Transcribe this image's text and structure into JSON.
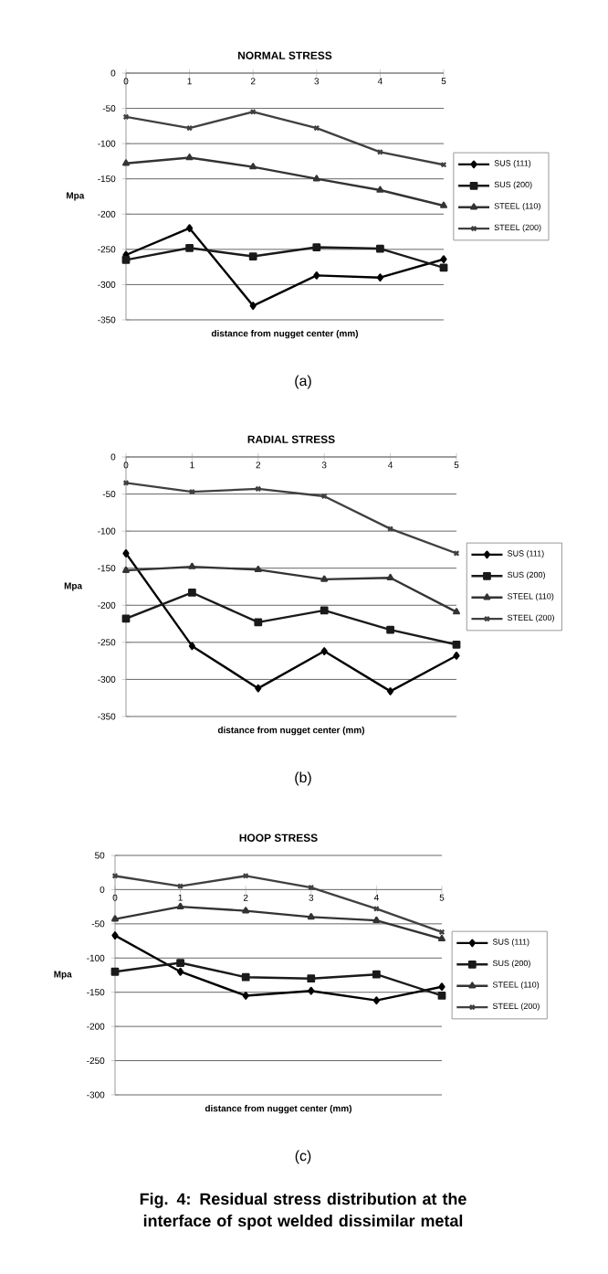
{
  "chart_data": [
    {
      "type": "line",
      "title": "NORMAL STRESS",
      "xlabel": "distance from nugget center (mm)",
      "ylabel": "Mpa",
      "x": [
        0,
        1,
        2,
        3,
        4,
        5
      ],
      "xlim": [
        0,
        5
      ],
      "xticks": [
        0,
        1,
        2,
        3,
        4,
        5
      ],
      "ylim": [
        -350,
        0
      ],
      "yticks": [
        -350,
        -300,
        -250,
        -200,
        -150,
        -100,
        -50,
        0
      ],
      "grid": "y",
      "legend": "right",
      "series": [
        {
          "name": "SUS (111)",
          "color": "#000000",
          "marker": "diamond",
          "values": [
            -258,
            -220,
            -330,
            -287,
            -290,
            -264
          ]
        },
        {
          "name": "SUS (200)",
          "color": "#1a1a1a",
          "marker": "square",
          "values": [
            -265,
            -248,
            -260,
            -247,
            -249,
            -276
          ]
        },
        {
          "name": "STEEL (110)",
          "color": "#333333",
          "marker": "triangle",
          "values": [
            -128,
            -120,
            -133,
            -150,
            -166,
            -188
          ]
        },
        {
          "name": "STEEL (200)",
          "color": "#404040",
          "marker": "cross",
          "values": [
            -62,
            -78,
            -55,
            -78,
            -112,
            -130
          ]
        }
      ],
      "annotations": [
        "(a)"
      ]
    },
    {
      "type": "line",
      "title": "RADIAL STRESS",
      "xlabel": "distance from nugget center (mm)",
      "ylabel": "Mpa",
      "x": [
        0,
        1,
        2,
        3,
        4,
        5
      ],
      "xlim": [
        0,
        5
      ],
      "xticks": [
        0,
        1,
        2,
        3,
        4,
        5
      ],
      "ylim": [
        -350,
        0
      ],
      "yticks": [
        -350,
        -300,
        -250,
        -200,
        -150,
        -100,
        -50,
        0
      ],
      "grid": "y",
      "legend": "right",
      "series": [
        {
          "name": "SUS (111)",
          "color": "#000000",
          "marker": "diamond",
          "values": [
            -130,
            -255,
            -312,
            -262,
            -316,
            -268
          ]
        },
        {
          "name": "SUS (200)",
          "color": "#1a1a1a",
          "marker": "square",
          "values": [
            -218,
            -183,
            -223,
            -207,
            -233,
            -253
          ]
        },
        {
          "name": "STEEL (110)",
          "color": "#333333",
          "marker": "triangle",
          "values": [
            -153,
            -148,
            -152,
            -165,
            -163,
            -209
          ]
        },
        {
          "name": "STEEL (200)",
          "color": "#404040",
          "marker": "cross",
          "values": [
            -35,
            -47,
            -43,
            -53,
            -97,
            -130
          ]
        }
      ],
      "annotations": [
        "(b)"
      ]
    },
    {
      "type": "line",
      "title": "HOOP STRESS",
      "xlabel": "distance from nugget center (mm)",
      "ylabel": "Mpa",
      "x": [
        0,
        1,
        2,
        3,
        4,
        5
      ],
      "xlim": [
        0,
        5
      ],
      "xticks": [
        0,
        1,
        2,
        3,
        4,
        5
      ],
      "ylim": [
        -300,
        50
      ],
      "yticks": [
        -300,
        -250,
        -200,
        -150,
        -100,
        -50,
        0,
        50
      ],
      "grid": "y",
      "legend": "right",
      "series": [
        {
          "name": "SUS (111)",
          "color": "#000000",
          "marker": "diamond",
          "values": [
            -67,
            -120,
            -155,
            -148,
            -162,
            -142
          ]
        },
        {
          "name": "SUS (200)",
          "color": "#1a1a1a",
          "marker": "square",
          "values": [
            -120,
            -107,
            -128,
            -130,
            -124,
            -155
          ]
        },
        {
          "name": "STEEL (110)",
          "color": "#333333",
          "marker": "triangle",
          "values": [
            -43,
            -25,
            -31,
            -40,
            -45,
            -72
          ]
        },
        {
          "name": "STEEL (200)",
          "color": "#404040",
          "marker": "cross",
          "values": [
            20,
            5,
            20,
            3,
            -28,
            -62
          ]
        }
      ],
      "annotations": [
        "(c)",
        "Fig. 4: Residual stress distribution at the interface of spot welded dissimilar metal"
      ]
    }
  ]
}
